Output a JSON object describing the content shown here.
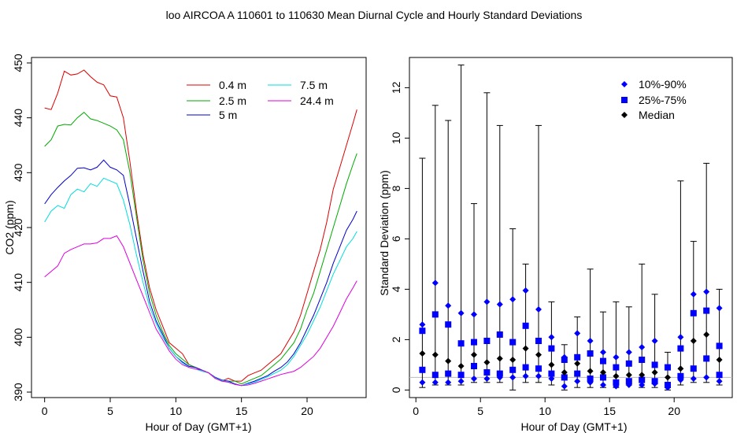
{
  "title": "loo   AIRCOA A   110601 to 110630   Mean Diurnal Cycle and Hourly Standard Deviations",
  "chart_data": [
    {
      "type": "line",
      "xlabel": "Hour of Day (GMT+1)",
      "ylabel": "CO2 (ppm)",
      "xlim": [
        -1,
        24.5
      ],
      "ylim": [
        389,
        451
      ],
      "xticks": [
        0,
        5,
        10,
        15,
        20
      ],
      "yticks": [
        390,
        400,
        410,
        420,
        430,
        440,
        450
      ],
      "legend_position": "top-right",
      "series": [
        {
          "name": "0.4 m",
          "color": "#dd0000",
          "x": [
            0,
            0.5,
            1,
            1.5,
            2,
            2.5,
            3,
            3.5,
            4,
            4.5,
            5,
            5.5,
            6,
            6.5,
            7,
            7.5,
            8,
            8.5,
            9,
            9.5,
            10,
            10.5,
            11,
            11.5,
            12,
            12.5,
            13,
            13.5,
            14,
            14.5,
            15,
            15.5,
            16,
            16.5,
            17,
            17.5,
            18,
            18.5,
            19,
            19.5,
            20,
            20.5,
            21,
            21.5,
            22,
            22.5,
            23,
            23.5,
            23.8
          ],
          "y": [
            441.8,
            441.5,
            444.5,
            448.5,
            447.8,
            448,
            448.7,
            447.5,
            446.5,
            446,
            444,
            443.8,
            440,
            432,
            423,
            415,
            409,
            405,
            402,
            399,
            398,
            397,
            395,
            394.5,
            394,
            393.5,
            392.5,
            392,
            392.5,
            392,
            392,
            393,
            393.5,
            394,
            395,
            396,
            397,
            399,
            401,
            404,
            408,
            412,
            416,
            421,
            427,
            431,
            435,
            439,
            441.5
          ]
        },
        {
          "name": "2.5 m",
          "color": "#00aa00",
          "x": [
            0,
            0.5,
            1,
            1.5,
            2,
            2.5,
            3,
            3.5,
            4,
            4.5,
            5,
            5.5,
            6,
            6.5,
            7,
            7.5,
            8,
            8.5,
            9,
            9.5,
            10,
            10.5,
            11,
            11.5,
            12,
            12.5,
            13,
            13.5,
            14,
            14.5,
            15,
            15.5,
            16,
            16.5,
            17,
            17.5,
            18,
            18.5,
            19,
            19.5,
            20,
            20.5,
            21,
            21.5,
            22,
            22.5,
            23,
            23.5,
            23.8
          ],
          "y": [
            434.8,
            436,
            438.5,
            438.8,
            438.7,
            440,
            441,
            439.8,
            439.5,
            439,
            438.5,
            437.8,
            436,
            430,
            422,
            414,
            408,
            404,
            401,
            398.5,
            397,
            396,
            395,
            394.5,
            394,
            393.5,
            392.5,
            392,
            392,
            392,
            391.5,
            392,
            392.5,
            393,
            394,
            395,
            396,
            397.5,
            399,
            401.5,
            405,
            408,
            412,
            416,
            420,
            424,
            428,
            431.5,
            433.5
          ]
        },
        {
          "name": "5 m",
          "color": "#0000cc",
          "x": [
            0,
            0.5,
            1,
            1.5,
            2,
            2.5,
            3,
            3.5,
            4,
            4.5,
            5,
            5.5,
            6,
            6.5,
            7,
            7.5,
            8,
            8.5,
            9,
            9.5,
            10,
            10.5,
            11,
            11.5,
            12,
            12.5,
            13,
            13.5,
            14,
            14.5,
            15,
            15.5,
            16,
            16.5,
            17,
            17.5,
            18,
            18.5,
            19,
            19.5,
            20,
            20.5,
            21,
            21.5,
            22,
            22.5,
            23,
            23.5,
            23.8
          ],
          "y": [
            424.3,
            426,
            427.3,
            428.5,
            429.5,
            430.8,
            430.9,
            430.5,
            431,
            432.3,
            431,
            430.5,
            429.5,
            424,
            418,
            412,
            406.5,
            403,
            400.5,
            398,
            396.5,
            395.5,
            394.7,
            394.5,
            394,
            393.5,
            392.7,
            392.2,
            392,
            391.5,
            391.2,
            391.6,
            392,
            392.5,
            393,
            393.8,
            394.5,
            395.5,
            397,
            399,
            401.5,
            404,
            407,
            410,
            413.5,
            416.5,
            419.5,
            421.5,
            423
          ]
        },
        {
          "name": "7.5 m",
          "color": "#00dddd",
          "x": [
            0,
            0.5,
            1,
            1.5,
            2,
            2.5,
            3,
            3.5,
            4,
            4.5,
            5,
            5.5,
            6,
            6.5,
            7,
            7.5,
            8,
            8.5,
            9,
            9.5,
            10,
            10.5,
            11,
            11.5,
            12,
            12.5,
            13,
            13.5,
            14,
            14.5,
            15,
            15.5,
            16,
            16.5,
            17,
            17.5,
            18,
            18.5,
            19,
            19.5,
            20,
            20.5,
            21,
            21.5,
            22,
            22.5,
            23,
            23.5,
            23.8
          ],
          "y": [
            421,
            423,
            424,
            423.5,
            426,
            427,
            426.5,
            428,
            427.5,
            429,
            428.5,
            428,
            425,
            420.5,
            415,
            410,
            405.5,
            402.5,
            400,
            398,
            396.5,
            395.3,
            394.5,
            394.2,
            393.8,
            393.5,
            392.6,
            392.1,
            391.9,
            391.4,
            391.2,
            391.5,
            391.8,
            392.3,
            392.8,
            393.4,
            394,
            395,
            396.5,
            398.5,
            400.5,
            403,
            405.5,
            408.5,
            411.5,
            414,
            416.5,
            418,
            419.3
          ]
        },
        {
          "name": "24.4 m",
          "color": "#dd00dd",
          "x": [
            0,
            0.5,
            1,
            1.5,
            2,
            2.5,
            3,
            3.5,
            4,
            4.5,
            5,
            5.5,
            6,
            6.5,
            7,
            7.5,
            8,
            8.5,
            9,
            9.5,
            10,
            10.5,
            11,
            11.5,
            12,
            12.5,
            13,
            13.5,
            14,
            14.5,
            15,
            15.5,
            16,
            16.5,
            17,
            17.5,
            18,
            18.5,
            19,
            19.5,
            20,
            20.5,
            21,
            21.5,
            22,
            22.5,
            23,
            23.5,
            23.8
          ],
          "y": [
            411,
            412,
            413,
            415.3,
            416,
            416.5,
            417,
            417,
            417.2,
            418,
            418,
            418.5,
            416.5,
            413.5,
            410.5,
            407.5,
            404.5,
            401.5,
            399.5,
            397.5,
            396,
            395,
            394.5,
            394.2,
            394,
            393.5,
            392.5,
            392,
            391.8,
            391.4,
            391.2,
            391.3,
            391.6,
            392,
            392.4,
            392.8,
            393.2,
            393.5,
            393.8,
            394.5,
            395.5,
            396.5,
            398,
            400,
            402,
            404.5,
            407,
            409,
            410.3
          ]
        }
      ]
    },
    {
      "type": "scatter",
      "xlabel": "Hour of Day (GMT+1)",
      "ylabel": "Standard Deviation (ppm)",
      "xlim": [
        -0.5,
        24.5
      ],
      "ylim": [
        -0.3,
        13.2
      ],
      "xticks": [
        0,
        5,
        10,
        15,
        20
      ],
      "yticks": [
        0,
        2,
        4,
        6,
        8,
        10,
        12
      ],
      "reference_line": 0.5,
      "legend_position": "top-right",
      "legend": [
        {
          "name": "10%-90%",
          "marker": "diamond",
          "color": "#0000ff"
        },
        {
          "name": "25%-75%",
          "marker": "square",
          "color": "#0000ff"
        },
        {
          "name": "Median",
          "marker": "diamond",
          "color": "#000000"
        }
      ],
      "hours": [
        0.5,
        1.5,
        2.5,
        3.5,
        4.5,
        5.5,
        6.5,
        7.5,
        8.5,
        9.5,
        10.5,
        11.5,
        12.5,
        13.5,
        14.5,
        15.5,
        16.5,
        17.5,
        18.5,
        19.5,
        20.5,
        21.5,
        22.5,
        23.5
      ],
      "max": [
        9.2,
        11.3,
        10.7,
        12.9,
        7.4,
        11.8,
        10.5,
        6.4,
        5.0,
        10.5,
        3.5,
        1.8,
        2.9,
        4.8,
        3.1,
        3.5,
        3.3,
        5.0,
        3.8,
        1.5,
        8.3,
        5.9,
        9.0,
        4.0
      ],
      "min": [
        0.1,
        0.2,
        0.2,
        0.2,
        0.3,
        0.3,
        0.3,
        0.0,
        0.3,
        0.3,
        0.2,
        0.0,
        0.1,
        0.1,
        0.1,
        0.1,
        0.2,
        0.1,
        0.1,
        0.0,
        0.2,
        0.3,
        0.3,
        0.2
      ],
      "p90": [
        2.6,
        4.25,
        3.35,
        3.05,
        3.0,
        3.5,
        3.4,
        3.6,
        3.95,
        3.2,
        2.1,
        1.3,
        2.25,
        1.95,
        1.5,
        1.3,
        1.5,
        1.7,
        1.95,
        0.9,
        2.1,
        3.8,
        3.9,
        3.25
      ],
      "p75": [
        2.35,
        3.0,
        2.6,
        1.85,
        1.9,
        1.95,
        2.2,
        1.9,
        2.55,
        1.95,
        1.65,
        1.2,
        1.3,
        1.45,
        1.15,
        0.9,
        1.05,
        1.2,
        1.0,
        0.9,
        1.65,
        3.05,
        3.15,
        1.75
      ],
      "median": [
        1.45,
        1.4,
        1.15,
        0.95,
        1.4,
        1.1,
        1.25,
        1.2,
        1.65,
        1.4,
        1.0,
        0.7,
        1.05,
        0.75,
        0.7,
        0.55,
        0.6,
        0.6,
        0.7,
        0.5,
        0.85,
        1.95,
        2.2,
        1.2
      ],
      "p25": [
        0.8,
        0.6,
        0.65,
        0.6,
        0.95,
        0.7,
        0.65,
        0.8,
        0.9,
        0.85,
        0.65,
        0.5,
        0.65,
        0.45,
        0.5,
        0.3,
        0.35,
        0.4,
        0.35,
        0.2,
        0.55,
        0.85,
        1.25,
        0.6
      ],
      "p10": [
        0.3,
        0.3,
        0.3,
        0.35,
        0.45,
        0.45,
        0.5,
        0.5,
        0.55,
        0.55,
        0.45,
        0.15,
        0.35,
        0.3,
        0.2,
        0.15,
        0.2,
        0.2,
        0.25,
        0.1,
        0.4,
        0.45,
        0.5,
        0.35
      ]
    }
  ]
}
